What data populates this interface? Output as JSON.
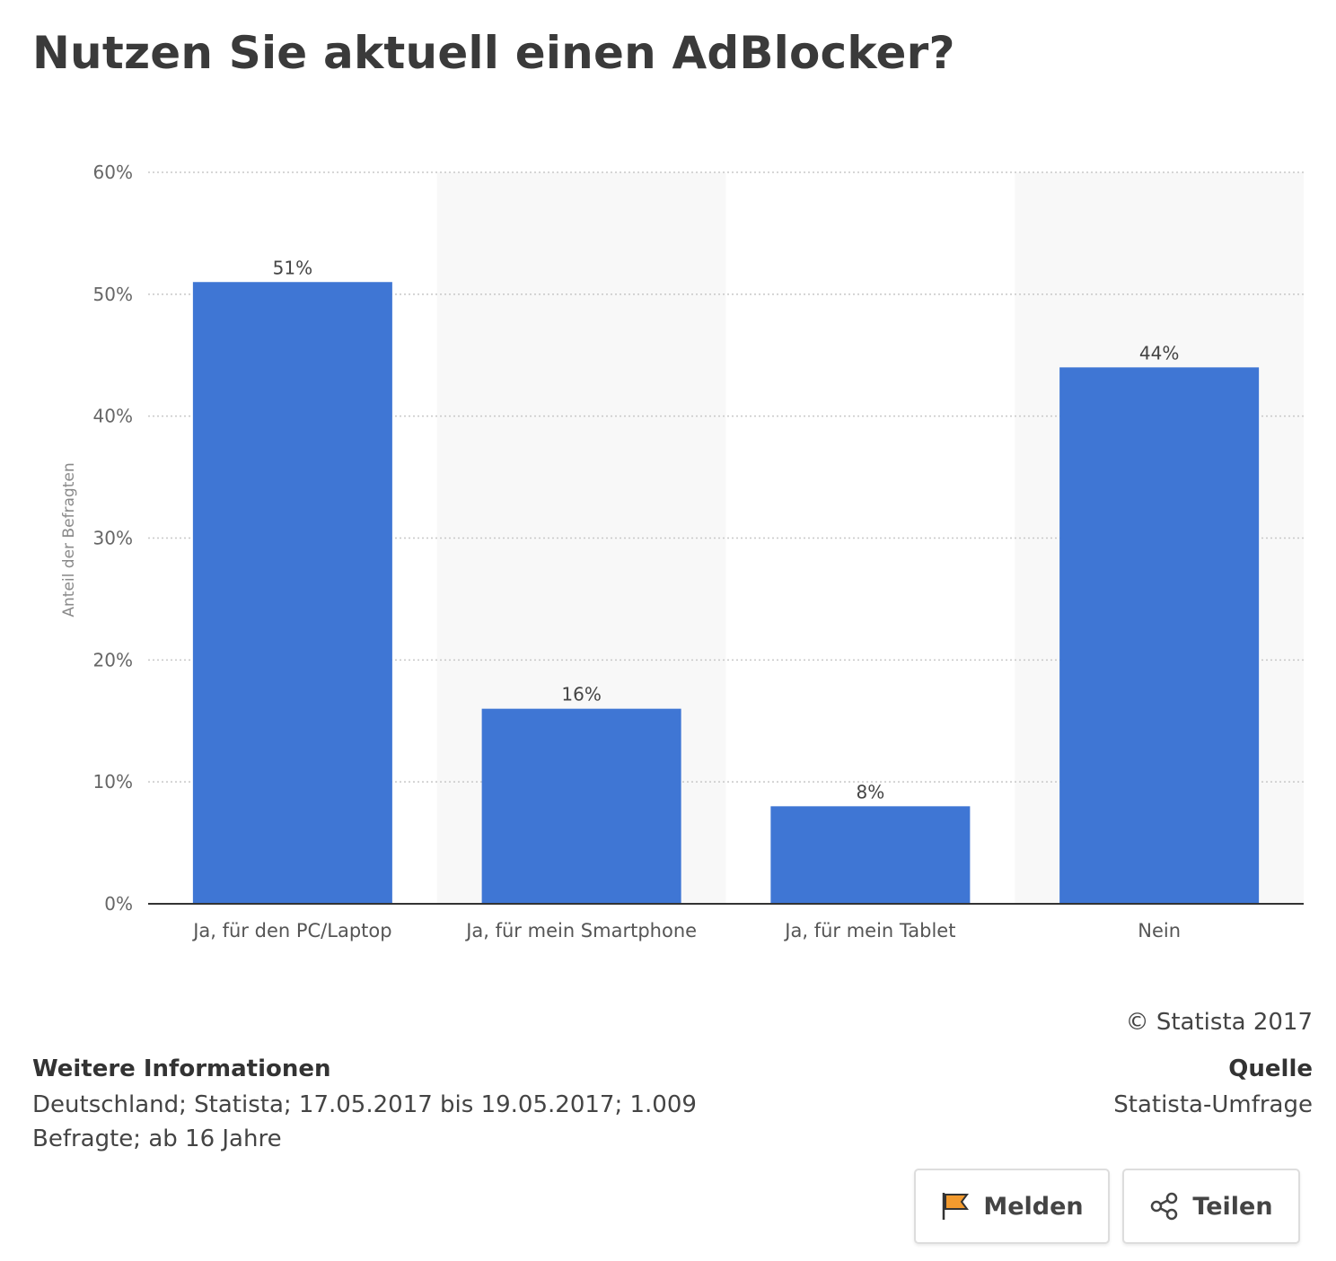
{
  "title": "Nutzen Sie aktuell einen AdBlocker?",
  "chart_data": {
    "type": "bar",
    "categories": [
      "Ja, für den PC/Laptop",
      "Ja, für mein Smartphone",
      "Ja, für mein Tablet",
      "Nein"
    ],
    "values": [
      51,
      16,
      8,
      44
    ],
    "value_labels": [
      "51%",
      "16%",
      "8%",
      "44%"
    ],
    "ylabel": "Anteil der Befragten",
    "xlabel": "",
    "ylim": [
      0,
      60
    ],
    "yticks": [
      0,
      10,
      20,
      30,
      40,
      50,
      60
    ],
    "ytick_labels": [
      "0%",
      "10%",
      "20%",
      "30%",
      "40%",
      "50%",
      "60%"
    ],
    "grid": "horizontal dotted",
    "bar_color": "#3f76d4",
    "alternate_band_color": "#f8f8f8"
  },
  "copyright": "© Statista 2017",
  "info": {
    "heading": "Weitere Informationen",
    "text": "Deutschland; Statista; 17.05.2017 bis 19.05.2017; 1.009 Befragte; ab 16 Jahre"
  },
  "source": {
    "heading": "Quelle",
    "text": "Statista-Umfrage"
  },
  "buttons": {
    "report_label": "Melden",
    "report_icon": "flag-icon",
    "share_label": "Teilen",
    "share_icon": "share-icon"
  },
  "colors": {
    "flag": "#f29a2e"
  }
}
